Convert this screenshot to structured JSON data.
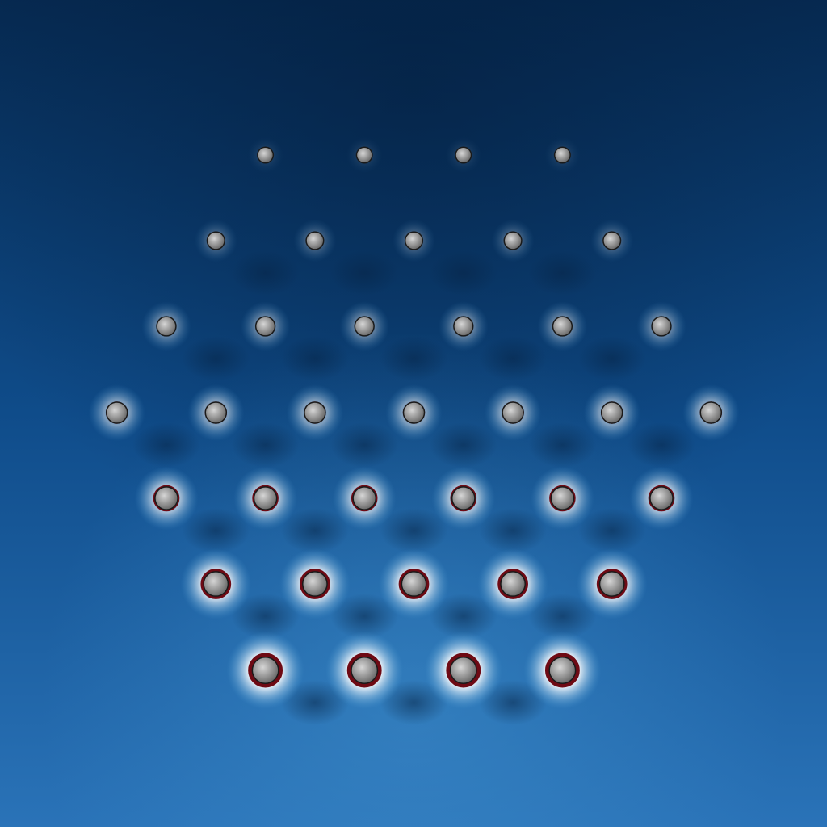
{
  "scene": {
    "colors": {
      "background_top": "#062a52",
      "background_mid": "#0f4c8a",
      "background_bottom": "#2a73b8",
      "halo_inner": "#ffffff",
      "halo_outer": "#4f9fd6",
      "ring": "#6e0a14",
      "sphere_light": "#d6d6d6",
      "sphere_dark": "#6a6a6a"
    },
    "lattice": {
      "row_counts": [
        4,
        5,
        6,
        7,
        6,
        5,
        4
      ]
    }
  }
}
